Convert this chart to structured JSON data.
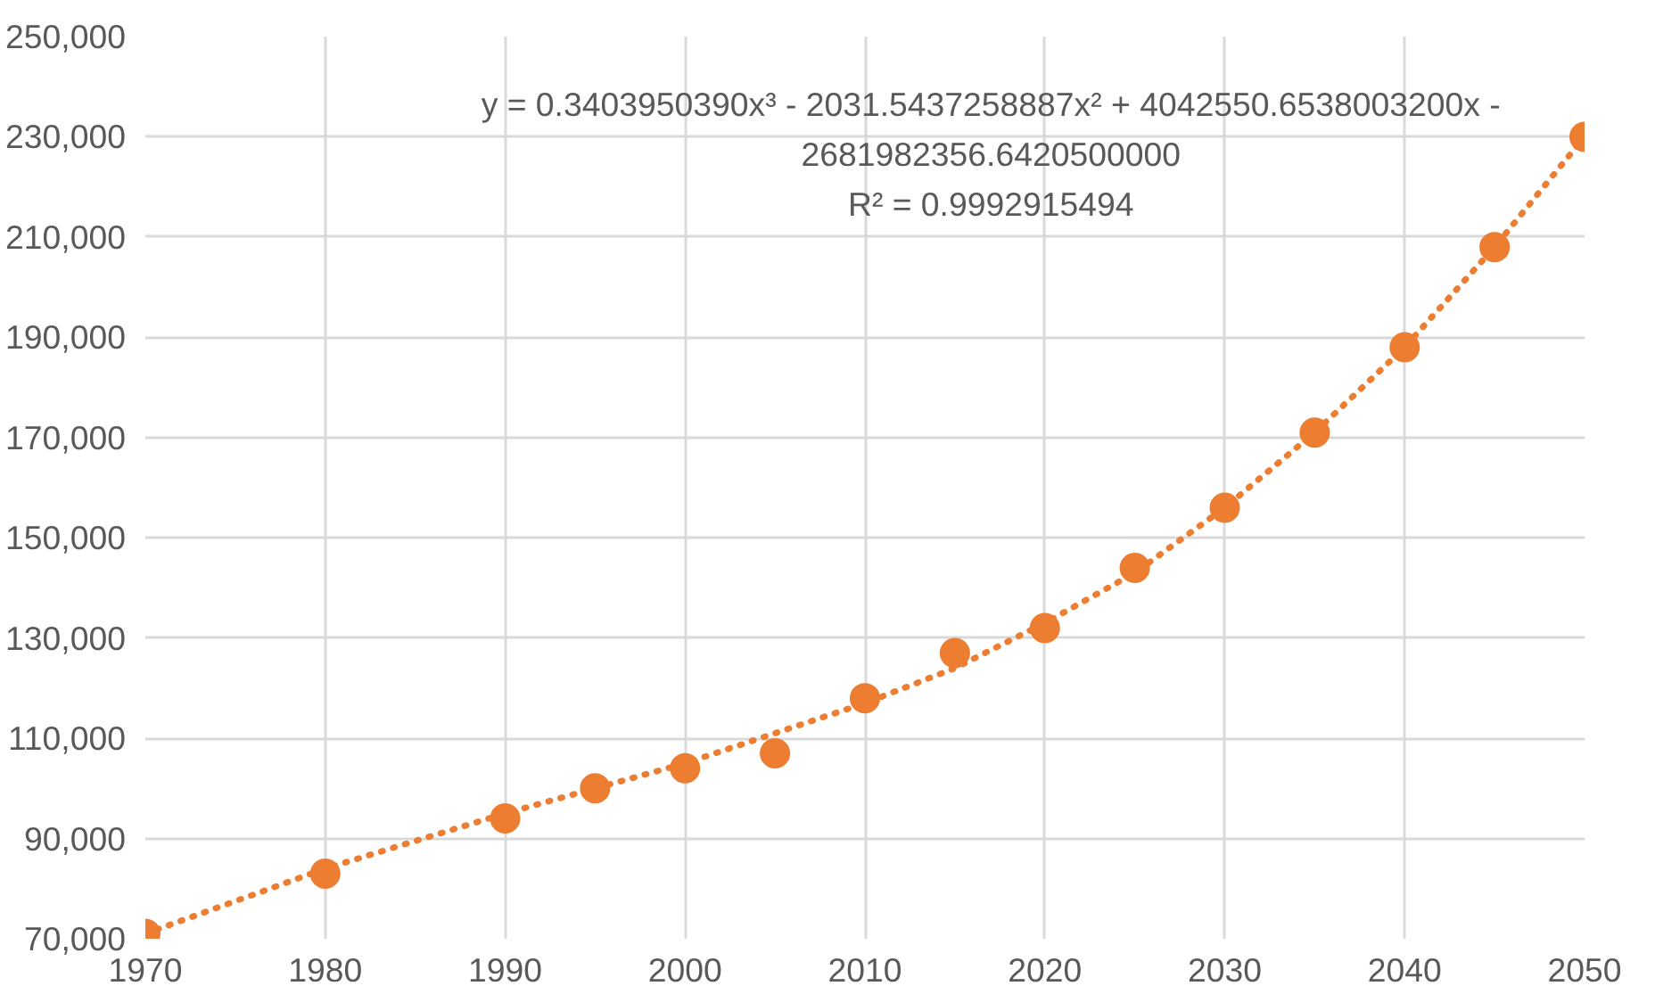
{
  "chart_data": {
    "type": "scatter",
    "marker": "circle",
    "grid": true,
    "x": [
      1970,
      1980,
      1990,
      1995,
      2000,
      2005,
      2010,
      2015,
      2020,
      2025,
      2030,
      2035,
      2040,
      2045,
      2050
    ],
    "series": [
      {
        "color": "#ed7d31",
        "values": [
          71000,
          83000,
          94000,
          100000,
          104000,
          107000,
          118000,
          127000,
          132000,
          144000,
          156000,
          171000,
          188000,
          208000,
          230000
        ]
      },
      {
        "type": "line",
        "marker": "none",
        "line_style": "dotted",
        "color": "#ed7d31",
        "x": [
          1970,
          1975,
          1980,
          1985,
          1990,
          1995,
          2000,
          2005,
          2010,
          2015,
          2020,
          2025,
          2030,
          2035,
          2040,
          2045,
          2050
        ],
        "values": [
          71000,
          77500,
          84000,
          89500,
          95000,
          100000,
          105000,
          111000,
          117000,
          124000,
          133000,
          143000,
          156000,
          171000,
          188000,
          208000,
          230000
        ]
      }
    ],
    "xlim": [
      1970,
      2050
    ],
    "xticks": [
      1970,
      1980,
      1990,
      2000,
      2010,
      2020,
      2030,
      2040,
      2050
    ],
    "ylim": [
      70000,
      250000
    ],
    "yticks": [
      {
        "value": 70000,
        "label": "70,000"
      },
      {
        "value": 90000,
        "label": "90,000"
      },
      {
        "value": 110000,
        "label": "110,000"
      },
      {
        "value": 130000,
        "label": "130,000"
      },
      {
        "value": 150000,
        "label": "150,000"
      },
      {
        "value": 170000,
        "label": "170,000"
      },
      {
        "value": 190000,
        "label": "190,000"
      },
      {
        "value": 210000,
        "label": "210,000"
      },
      {
        "value": 230000,
        "label": "230,000"
      },
      {
        "value": 250000,
        "label": "250,000"
      }
    ],
    "annotations": [
      "y = 0.3403950390x³ - 2031.5437258887x² + 4042550.6538003200x - 2681982356.6420500000",
      "R² = 0.9992915494"
    ]
  }
}
